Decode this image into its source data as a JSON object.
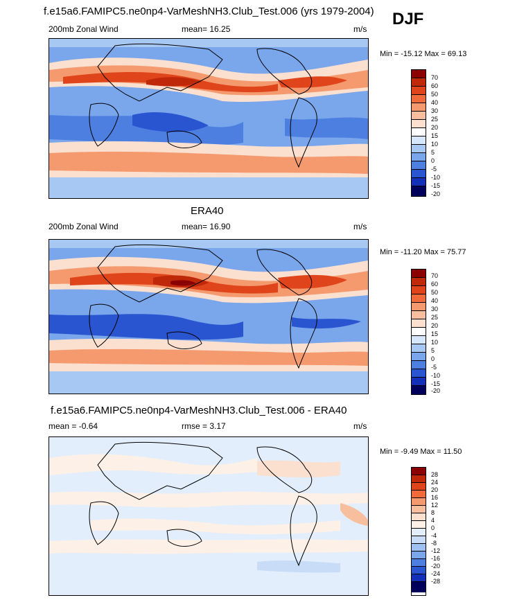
{
  "season": "DJF",
  "panels": [
    {
      "title": "f.e15a6.FAMIPC5.ne0np4-VarMeshNH3.Club_Test.006 (yrs 1979-2004)",
      "left_label": "200mb Zonal Wind",
      "center_label": "mean=  16.25",
      "right_label": "m/s",
      "minmax": "Min = -15.12 Max =  69.13",
      "colorbar_levels": [
        "70",
        "60",
        "50",
        "40",
        "30",
        "25",
        "20",
        "15",
        "10",
        "5",
        "0",
        "-5",
        "-10",
        "-15",
        "-20"
      ]
    },
    {
      "title": "ERA40",
      "left_label": "200mb Zonal Wind",
      "center_label": "mean=  16.90",
      "right_label": "m/s",
      "minmax": "Min = -11.20 Max =  75.77",
      "colorbar_levels": [
        "70",
        "60",
        "50",
        "40",
        "30",
        "25",
        "20",
        "15",
        "10",
        "5",
        "0",
        "-5",
        "-10",
        "-15",
        "-20"
      ]
    },
    {
      "title": "f.e15a6.FAMIPC5.ne0np4-VarMeshNH3.Club_Test.006 - ERA40",
      "left_label": "mean =  -0.64",
      "center_label": "rmse =   3.17",
      "right_label": "m/s",
      "minmax": "Min =  -9.49 Max =  11.50",
      "colorbar_levels": [
        "28",
        "24",
        "20",
        "16",
        "12",
        "8",
        "4",
        "0",
        "-4",
        "-8",
        "-12",
        "-16",
        "-20",
        "-24",
        "-28"
      ]
    }
  ],
  "colors": {
    "main_scale": [
      "#8b0000",
      "#c0280a",
      "#e0441a",
      "#f06a3a",
      "#f59a6e",
      "#f8bf9f",
      "#fbe0cf",
      "#ffffff",
      "#d6e6fb",
      "#a8c8f4",
      "#7aa6ec",
      "#4d7fe0",
      "#2a55d0",
      "#1430b8",
      "#000a80",
      "#00005a"
    ],
    "diff_scale": [
      "#8b0000",
      "#c0280a",
      "#e0441a",
      "#f06a3a",
      "#f59a6e",
      "#f8bf9f",
      "#fbe0cf",
      "#fdf0e6",
      "#e3eefc",
      "#c8dcf8",
      "#9fc0f2",
      "#7aa6ec",
      "#4d7fe0",
      "#2a55d0",
      "#1430b8",
      "#00005a"
    ]
  }
}
